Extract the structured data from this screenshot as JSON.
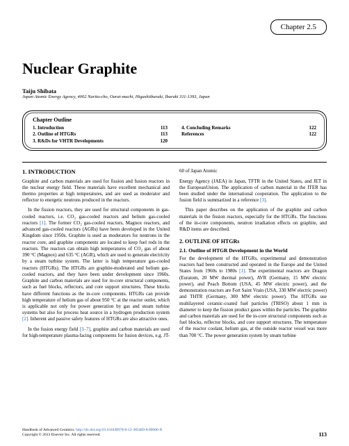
{
  "chapter_label": "Chapter 2.5",
  "title": "Nuclear Graphite",
  "author": "Taiju Shibata",
  "affiliation": "Japan Atomic Energy Agency, 4002 Narita-cho, Oarai-machi, Higashiibaraki, Ibaraki 311-1393, Japan",
  "outline": {
    "heading": "Chapter Outline",
    "left": [
      {
        "label": "1. Introduction",
        "page": "113"
      },
      {
        "label": "2. Outline of HTGRs",
        "page": "113"
      },
      {
        "label": "3. R&Ds for VHTR Developments",
        "page": "120"
      }
    ],
    "right": [
      {
        "label": "4. Concluding Remarks",
        "page": "122"
      },
      {
        "label": "References",
        "page": "122"
      }
    ]
  },
  "section1": {
    "heading": "1. INTRODUCTION",
    "p1": "Graphite and carbon materials are used for fission and fusion reactors in the nuclear energy field. These materials have excellent mechanical and thermo properties at high temperatures, and are used as moderator and reflector to energetic neutrons produced in the reactors.",
    "p2a": "In the fission reactors, they are used for structural components in gas-cooled reactors, i.e. CO₂ gas-cooled reactors and helium gas-cooled reactors ",
    "p2_ref": "[1]",
    "p2b": ". The former CO₂ gas-cooled reactors, Magnox reactors, and advanced gas-cooled reactors (AGRs) have been developed in the United Kingdom since 1950s. Graphite is used as moderators for neutrons in the reactor core, and graphite components are located to keep fuel rods in the reactors. The reactors can obtain high temperatures of CO₂ gas of about 390 °C (Magnox) and 635 °C (AGR), which are used to generate electricity by a steam turbine system. The latter is high temperature gas-cooled reactors (HTGRs). The HTGRs are graphite-moderated and helium gas-cooled reactors, and they have been under development since 1960s. Graphite and carbon materials are used for in-core structural components, such as fuel blocks, reflectors, and core support structures. These blocks have different functions as the in-core components. HTGRs can provide high temperature of helium gas of about 950 °C at the reactor outlet, which is applicable not only for power generation by gas and steam turbine systems but also for process heat source in a hydrogen production system ",
    "p2_ref2": "[2]",
    "p2c": ". Inherent and passive safety features of HTGRs are also attractive ones.",
    "p3a": "In the fusion energy field ",
    "p3_ref": "[3–7]",
    "p3b": ", graphite and carbon materials are used for high-temperature plasma-facing components for fusion devices, e.g. JT-60 of Japan Atomic",
    "p4a": "Energy Agency (JAEA) in Japan, TFTR in the United States, and JET in the EuropeanUnion. The application of carbon material in the ITER has been studied under the international cooperation. The application to the fusion field is summarized in a reference ",
    "p4_ref": "[3]",
    "p4b": ".",
    "p5": "This paper describes on the application of the graphite and carbon materials in the fission reactors, especially for the HTGRs. The functions of the in-core components, neutron irradiation effects on graphite, and R&D items are described."
  },
  "section2": {
    "heading": "2. OUTLINE OF HTGRs",
    "subheading": "2.1. Outline of HTGR Development in the World",
    "p1a": "For the development of the HTGRs, experimental and demonstration reactors had been constructed and operated in the Europe and the United States from 1960s to 1980s ",
    "p1_ref": "[1]",
    "p1b": ". The experimental reactors are Dragon (Euratom, 20 MW thermal power), AVR (Germany, 15 MW electric power), and Peach Bottom (USA, 45 MW electric power), and the demonstration reactors are Fort Saint Vrain (USA, 330 MW electric power) and THTR (Germany, 300 MW electric power). The HTGRs use multilayered ceramic-coated fuel particles (TRISO) about 1 mm in diameter to keep the fission product gases within the particles. The graphite and carbon materials are used for the in-core structural components such as fuel blocks, reflector blocks, and core support structures. The temperature of the reactor coolant, helium gas, at the outside reactor vessel was more than 700 °C. The power generation system by steam turbine"
  },
  "footer": {
    "line1": "Handbook of Advanced Ceramics. ",
    "doi": "http://dx.doi.org/10.1016/B978-0-12-385469-8.00006-X",
    "line2": "Copyright © 2013 Elsevier Inc. All rights reserved.",
    "page": "113"
  },
  "colors": {
    "text": "#000000",
    "link": "#2a5db0",
    "background": "#ffffff"
  }
}
